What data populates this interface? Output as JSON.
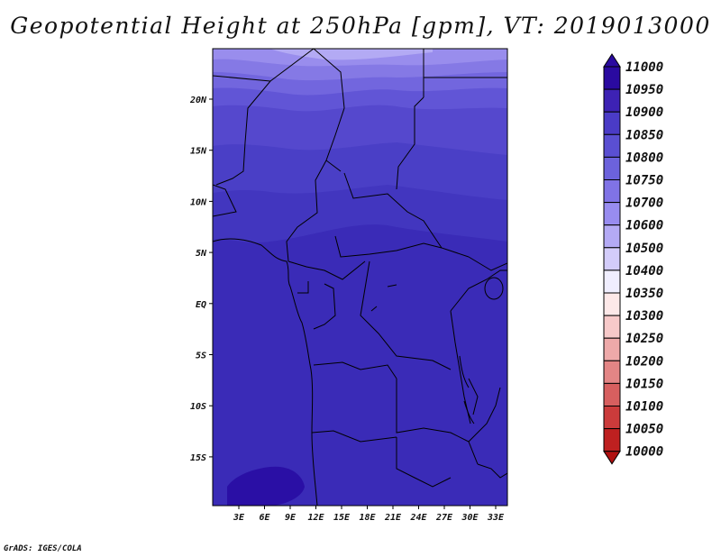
{
  "title": "Geopotential Height at 250hPa [gpm], VT: 2019013000",
  "credit": "GrADS: IGES/COLA",
  "map": {
    "lat_ticks": [
      "20N",
      "15N",
      "10N",
      "5N",
      "EQ",
      "5S",
      "10S",
      "15S"
    ],
    "lon_ticks": [
      "3E",
      "6E",
      "9E",
      "12E",
      "15E",
      "18E",
      "21E",
      "24E",
      "27E",
      "30E",
      "33E"
    ],
    "fill_bands": [
      {
        "value": 10600,
        "color": "#b4aaf5"
      },
      {
        "value": 10700,
        "color": "#9b8ef0"
      },
      {
        "value": 10750,
        "color": "#8678e6"
      },
      {
        "value": 10800,
        "color": "#6f62dc"
      },
      {
        "value": 10850,
        "color": "#5a4ed2"
      },
      {
        "value": 10900,
        "color": "#4638c4"
      },
      {
        "value": 10950,
        "color": "#3a2bb7"
      },
      {
        "value": 11000,
        "color": "#2a0fa5"
      }
    ]
  },
  "colorbar": {
    "labels": [
      "11000",
      "10950",
      "10900",
      "10850",
      "10800",
      "10750",
      "10700",
      "10600",
      "10500",
      "10400",
      "10350",
      "10300",
      "10250",
      "10200",
      "10150",
      "10100",
      "10050",
      "10000"
    ],
    "colors": [
      "#2a0aa0",
      "#3d22b4",
      "#4a3bc6",
      "#5a4fd2",
      "#6c62dc",
      "#8073e6",
      "#988cf0",
      "#b4aaf5",
      "#d3ccfa",
      "#f0eefe",
      "#fde8e8",
      "#f7c9c9",
      "#eea9a9",
      "#e38585",
      "#d75f5f",
      "#cb3b3b",
      "#be2020",
      "#b01010"
    ]
  }
}
